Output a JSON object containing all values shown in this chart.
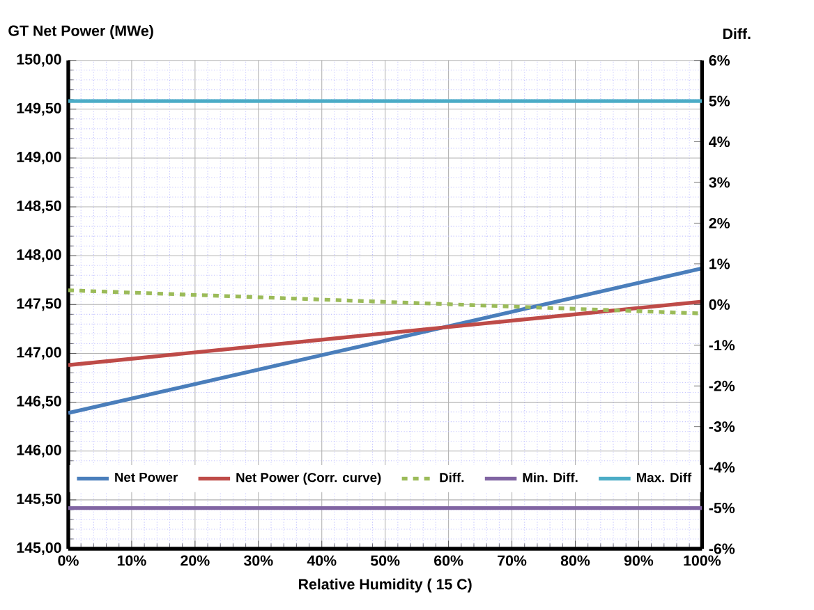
{
  "chart_data": {
    "type": "line",
    "ylabel": "GT Net Power (MWe)",
    "y2label": "Diff.",
    "xlabel": "Relative Humidity ( 15 C)",
    "x": [
      0,
      100
    ],
    "series": [
      {
        "name": "Net Power",
        "color": "#4a7ebb",
        "values": [
          146.39,
          147.87
        ]
      },
      {
        "name": "Net Power (Corr. curve)",
        "color": "#be4b48",
        "values": [
          146.88,
          147.53
        ]
      },
      {
        "name": "Diff.",
        "color": "#9bbb59",
        "values": [
          0.35,
          -0.22
        ],
        "axis": "y2",
        "line_style": "dashed"
      },
      {
        "name": "Min. Diff.",
        "color": "#8064a2",
        "values": [
          -5,
          -5
        ],
        "axis": "y2"
      },
      {
        "name": "Max. Diff",
        "color": "#4bacc6",
        "values": [
          5,
          5
        ],
        "axis": "y2"
      }
    ],
    "xlim": [
      0,
      100
    ],
    "xticks": [
      {
        "value": 0,
        "label": "0%"
      },
      {
        "value": 10,
        "label": "10%"
      },
      {
        "value": 20,
        "label": "20%"
      },
      {
        "value": 30,
        "label": "30%"
      },
      {
        "value": 40,
        "label": "40%"
      },
      {
        "value": 50,
        "label": "50%"
      },
      {
        "value": 60,
        "label": "60%"
      },
      {
        "value": 70,
        "label": "70%"
      },
      {
        "value": 80,
        "label": "80%"
      },
      {
        "value": 90,
        "label": "90%"
      },
      {
        "value": 100,
        "label": "100%"
      }
    ],
    "ylim": [
      145,
      150
    ],
    "yticks": [
      {
        "value": 145,
        "label": "145,00"
      },
      {
        "value": 145.5,
        "label": "145,50"
      },
      {
        "value": 146,
        "label": "146,00"
      },
      {
        "value": 146.5,
        "label": "146,50"
      },
      {
        "value": 147,
        "label": "147,00"
      },
      {
        "value": 147.5,
        "label": "147,50"
      },
      {
        "value": 148,
        "label": "148,00"
      },
      {
        "value": 148.5,
        "label": "148,50"
      },
      {
        "value": 149,
        "label": "149,00"
      },
      {
        "value": 149.5,
        "label": "149,50"
      },
      {
        "value": 150,
        "label": "150,00"
      }
    ],
    "y2lim": [
      -6,
      6
    ],
    "y2ticks": [
      {
        "value": -6,
        "label": "-6%"
      },
      {
        "value": -5,
        "label": "-5%"
      },
      {
        "value": -4,
        "label": "-4%"
      },
      {
        "value": -3,
        "label": "-3%"
      },
      {
        "value": -2,
        "label": "-2%"
      },
      {
        "value": -1,
        "label": "-1%"
      },
      {
        "value": 0,
        "label": "0%"
      },
      {
        "value": 1,
        "label": "1%"
      },
      {
        "value": 2,
        "label": "2%"
      },
      {
        "value": 3,
        "label": "3%"
      },
      {
        "value": 4,
        "label": "4%"
      },
      {
        "value": 5,
        "label": "5%"
      },
      {
        "value": 6,
        "label": "6%"
      }
    ],
    "grid": true,
    "legend": "bottom",
    "marker": "none",
    "line_style": "solid"
  }
}
